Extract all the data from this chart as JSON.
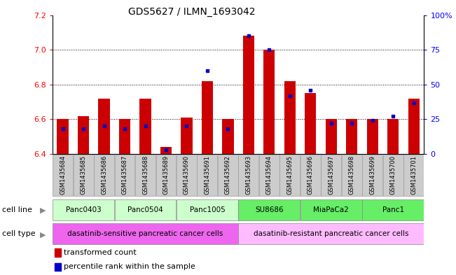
{
  "title": "GDS5627 / ILMN_1693042",
  "samples": [
    "GSM1435684",
    "GSM1435685",
    "GSM1435686",
    "GSM1435687",
    "GSM1435688",
    "GSM1435689",
    "GSM1435690",
    "GSM1435691",
    "GSM1435692",
    "GSM1435693",
    "GSM1435694",
    "GSM1435695",
    "GSM1435696",
    "GSM1435697",
    "GSM1435698",
    "GSM1435699",
    "GSM1435700",
    "GSM1435701"
  ],
  "red_values": [
    6.6,
    6.62,
    6.72,
    6.6,
    6.72,
    6.44,
    6.61,
    6.82,
    6.6,
    7.08,
    7.0,
    6.82,
    6.75,
    6.6,
    6.6,
    6.6,
    6.6,
    6.72
  ],
  "blue_percentile": [
    18,
    18,
    20,
    18,
    20,
    3,
    20,
    60,
    18,
    85,
    75,
    42,
    46,
    22,
    22,
    24,
    27,
    37
  ],
  "ylim_left": [
    6.4,
    7.2
  ],
  "ylim_right": [
    0,
    100
  ],
  "yticks_left": [
    6.4,
    6.6,
    6.8,
    7.0,
    7.2
  ],
  "yticks_right": [
    0,
    25,
    50,
    75,
    100
  ],
  "ytick_labels_right": [
    "0",
    "25",
    "50",
    "75",
    "100%"
  ],
  "cell_lines": [
    {
      "label": "Panc0403",
      "start": 0,
      "end": 2,
      "color": "#ccffcc"
    },
    {
      "label": "Panc0504",
      "start": 3,
      "end": 5,
      "color": "#ccffcc"
    },
    {
      "label": "Panc1005",
      "start": 6,
      "end": 8,
      "color": "#ccffcc"
    },
    {
      "label": "SU8686",
      "start": 9,
      "end": 11,
      "color": "#66ee66"
    },
    {
      "label": "MiaPaCa2",
      "start": 12,
      "end": 14,
      "color": "#66ee66"
    },
    {
      "label": "Panc1",
      "start": 15,
      "end": 17,
      "color": "#66ee66"
    }
  ],
  "cell_types": [
    {
      "label": "dasatinib-sensitive pancreatic cancer cells",
      "start": 0,
      "end": 8,
      "color": "#ee66ee"
    },
    {
      "label": "dasatinib-resistant pancreatic cancer cells",
      "start": 9,
      "end": 17,
      "color": "#ffbbff"
    }
  ],
  "bar_color": "#cc0000",
  "dot_color": "#0000cc",
  "base_value": 6.4,
  "bar_width": 0.55,
  "sample_box_color": "#cccccc",
  "legend_items": [
    {
      "label": "transformed count",
      "color": "#cc0000"
    },
    {
      "label": "percentile rank within the sample",
      "color": "#0000cc"
    }
  ],
  "title_fontsize": 10,
  "tick_fontsize": 8,
  "sample_fontsize": 6,
  "label_fontsize": 8,
  "cell_fontsize": 7.5
}
